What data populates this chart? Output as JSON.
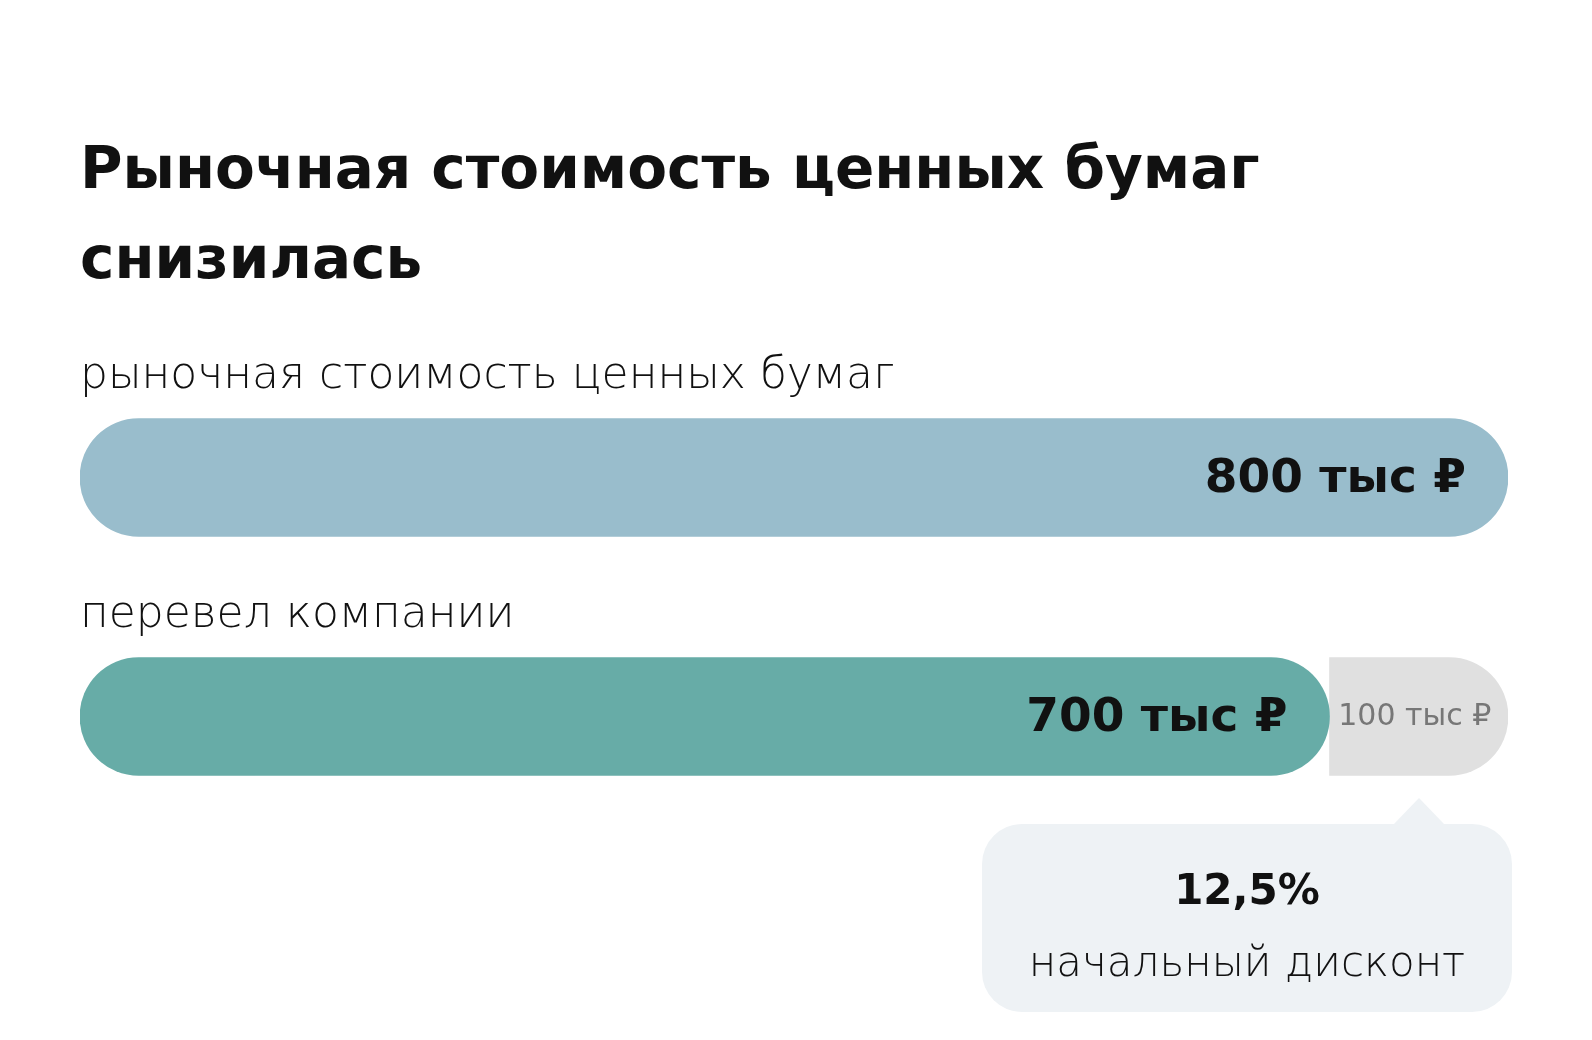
{
  "chart_data": {
    "type": "bar",
    "orientation": "horizontal",
    "stacked": true,
    "title": "Рыночная стоимость ценных бумаг снизилась",
    "categories": [
      "рыночная стоимость ценных бумаг",
      "перевел компании"
    ],
    "series": [
      {
        "colors": [
          "#99bdcc",
          "#67aca7"
        ],
        "values": [
          800,
          700
        ],
        "value_labels": [
          "800 тыс ₽",
          "700 тыс ₽"
        ]
      },
      {
        "color": "#e0e0e0",
        "values": [
          null,
          100
        ],
        "value_labels": [
          null,
          "100 тыс ₽"
        ]
      }
    ],
    "annotations": [
      "12,5%",
      "начальный дисконт"
    ],
    "legend": false,
    "grid": false,
    "tick_labels": "y"
  }
}
